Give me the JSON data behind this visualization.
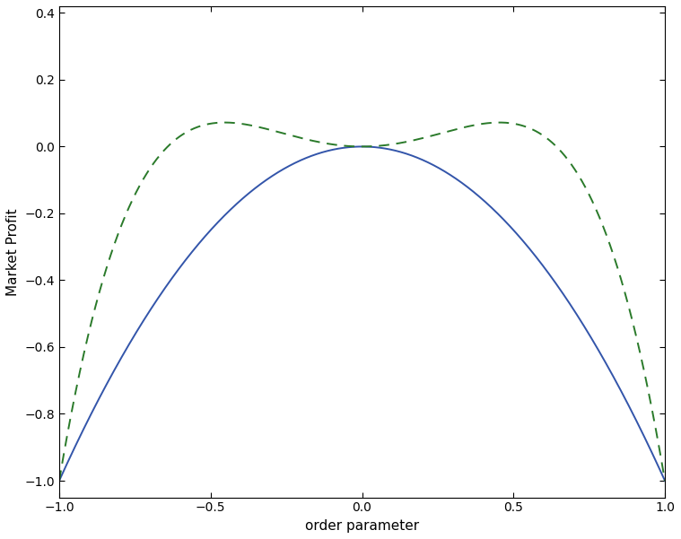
{
  "xlim": [
    -1,
    1
  ],
  "ylim": [
    -1.05,
    0.42
  ],
  "xlabel": "order parameter",
  "ylabel": "Market Profit",
  "blue_color": "#3355aa",
  "green_color": "#2a7a2a",
  "line_width": 1.4,
  "xticks": [
    -1,
    -0.5,
    0,
    0.5,
    1
  ],
  "yticks": [
    -1,
    -0.8,
    -0.6,
    -0.4,
    -0.2,
    0,
    0.2,
    0.4
  ],
  "figsize": [
    7.59,
    6.01
  ],
  "dpi": 100,
  "T_blue": 0.0,
  "T_green": 1.5,
  "J": 1.0
}
